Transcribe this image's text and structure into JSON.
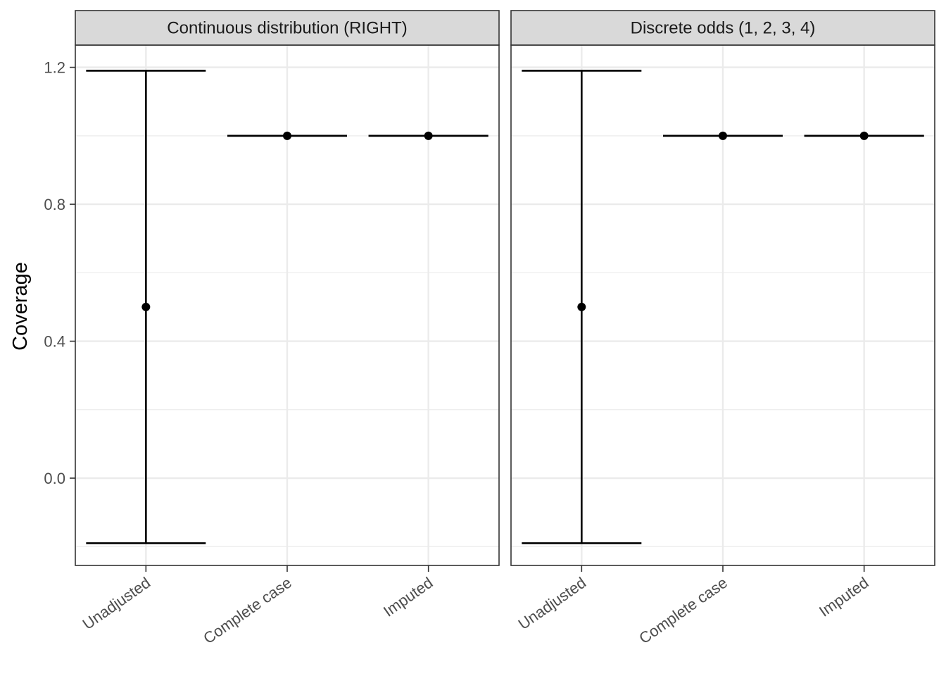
{
  "chart_data": {
    "type": "errorbar",
    "ylabel": "Coverage",
    "xlabel": "",
    "ylim": [
      -0.255,
      1.265
    ],
    "y_ticks": [
      0.0,
      0.4,
      0.8,
      1.2
    ],
    "y_tick_labels": [
      "0.0",
      "0.4",
      "0.8",
      "1.2"
    ],
    "y_minor_ticks": [
      -0.2,
      0.2,
      0.6,
      1.0
    ],
    "grid": true,
    "categories": [
      "Unadjusted",
      "Complete case",
      "Imputed"
    ],
    "facets": [
      {
        "label": "Continuous distribution (RIGHT)",
        "points": [
          {
            "category": "Unadjusted",
            "y": 0.5,
            "ymin": -0.19,
            "ymax": 1.19
          },
          {
            "category": "Complete case",
            "y": 1.0,
            "ymin": 1.0,
            "ymax": 1.0
          },
          {
            "category": "Imputed",
            "y": 1.0,
            "ymin": 1.0,
            "ymax": 1.0
          }
        ]
      },
      {
        "label": "Discrete odds (1, 2, 3, 4)",
        "points": [
          {
            "category": "Unadjusted",
            "y": 0.5,
            "ymin": -0.19,
            "ymax": 1.19
          },
          {
            "category": "Complete case",
            "y": 1.0,
            "ymin": 1.0,
            "ymax": 1.0
          },
          {
            "category": "Imputed",
            "y": 1.0,
            "ymin": 1.0,
            "ymax": 1.0
          }
        ]
      }
    ]
  }
}
